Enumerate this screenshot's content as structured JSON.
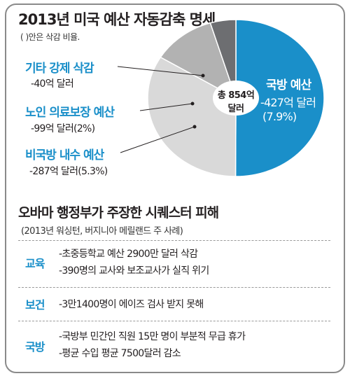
{
  "header": {
    "title": "2013년 미국 예산 자동감축 명세",
    "subtitle": "( )안은 삭감 비율."
  },
  "chart_data": {
    "type": "pie",
    "title": "2013년 미국 예산 자동감축 명세",
    "center_label": [
      "총 854억",
      "달러"
    ],
    "slices": [
      {
        "name": "국방 예산",
        "value": 427,
        "value_label": "-427억 달러",
        "pct_label": "(7.9%)",
        "color": "#1a8fc9"
      },
      {
        "name": "비국방 내수 예산",
        "value": 287,
        "value_label": "-287억 달러(5.3%)",
        "color": "#d9d9d9"
      },
      {
        "name": "노인 의료보장 예산",
        "value": 99,
        "value_label": "-99억 달러(2%)",
        "color": "#b2b2b2"
      },
      {
        "name": "기타 강제 삭감",
        "value": 40,
        "value_label": "-40억 달러",
        "color": "#6d6e71"
      }
    ]
  },
  "section": {
    "title": "오바마 행정부가 주장한 시퀘스터 피해",
    "subtitle": "(2013년 워싱턴, 버지니아 메릴랜드 주 사례)",
    "rows": [
      {
        "label": "교육",
        "lines": [
          "-초중등학교 예산 2900만 달러 삭감",
          "-390명의 교사와 보조교사가 실직 위기"
        ]
      },
      {
        "label": "보건",
        "lines": [
          "-3만1400명이 에이즈 검사 받지 못해"
        ]
      },
      {
        "label": "국방",
        "lines": [
          "-국방부 민간인 직원 15만 명이 부분적 무급 휴가",
          "-평균 수입 평균 7500달러 감소"
        ]
      }
    ]
  },
  "colors": {
    "accent": "#1a8fc9",
    "frame": "#8a8a8a"
  }
}
